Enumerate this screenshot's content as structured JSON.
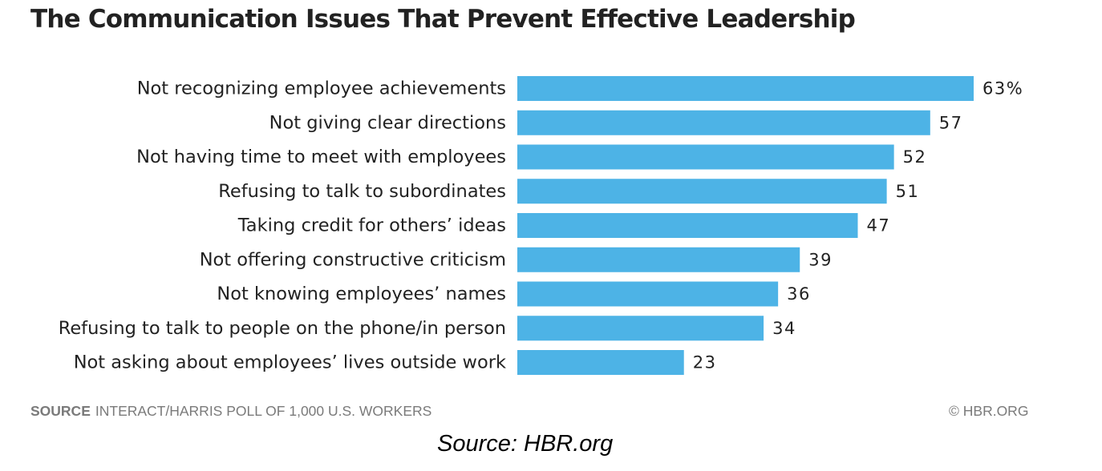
{
  "chart_data": {
    "type": "bar",
    "orientation": "horizontal",
    "title": "The Communication Issues That Prevent Effective Leadership",
    "categories": [
      "Not recognizing employee achievements",
      "Not giving clear directions",
      "Not having time to meet with employees",
      "Refusing to talk to subordinates",
      "Taking credit for others’ ideas",
      "Not offering constructive criticism",
      "Not knowing employees’ names",
      "Refusing to talk to people on the phone/in person",
      "Not asking about employees’ lives outside work"
    ],
    "values": [
      63,
      57,
      52,
      51,
      47,
      39,
      36,
      34,
      23
    ],
    "value_labels": [
      "63%",
      "57",
      "52",
      "51",
      "47",
      "39",
      "36",
      "34",
      "23"
    ],
    "xlim": [
      0,
      63
    ],
    "grid": false,
    "legend": "none",
    "bar_color": "#4db3e6"
  },
  "footer": {
    "source_key": "SOURCE",
    "source_text": "INTERACT/HARRIS POLL OF 1,000 U.S. WORKERS",
    "copyright": "© HBR.ORG"
  },
  "caption": "Source: HBR.org"
}
